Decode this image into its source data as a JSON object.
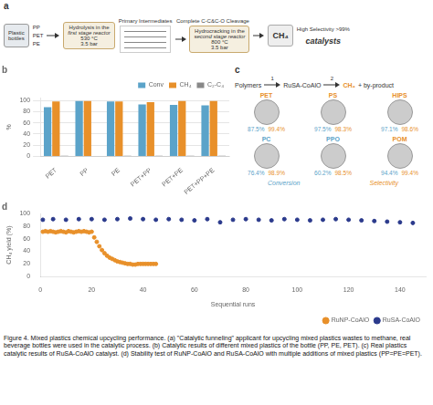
{
  "chart_data": [
    {
      "type": "diagram",
      "title": "a",
      "annotations": [
        "Plastic\nbottles",
        "PP",
        "PET",
        "PE",
        "Hydrolysis in the",
        "first stage reactor",
        "530 °C",
        "3.5 bar",
        "Primary Intermediates",
        "Complete C-C&C-O Cleavage",
        "Hydrocracking in the",
        "second stage reactor",
        "800 °C",
        "3.5 bar",
        "CH₄",
        "High Selectivity >99%",
        "catalysts"
      ]
    },
    {
      "type": "bar",
      "title": "b",
      "categories": [
        "PET",
        "PP",
        "PE",
        "PET+PP",
        "PET+PE",
        "PET+PP+PE"
      ],
      "series": [
        {
          "name": "Conv",
          "color": "#5ba3c9",
          "values": [
            88,
            99,
            98,
            93,
            92,
            91
          ]
        },
        {
          "name": "CH₄",
          "color": "#e8902a",
          "values": [
            98,
            99,
            98,
            97,
            99,
            99
          ]
        },
        {
          "name": "C₂-C₄",
          "color": "#888888",
          "values": [
            1.5,
            1.0,
            1.2,
            1.5,
            1.2,
            1.5
          ]
        }
      ],
      "y_label": "%",
      "ylim": [
        0,
        105
      ],
      "yticks": [
        0,
        20,
        40,
        60,
        80,
        100
      ],
      "grid": "y",
      "legend": "upper right"
    },
    {
      "type": "table",
      "title": "c",
      "annotations": [
        "Polymers",
        "1",
        "RuSA-CoAlO",
        "2",
        "CH₄",
        "+ by-product"
      ],
      "categories": [
        "PET",
        "PS",
        "HIPS",
        "PC",
        "PPO",
        "POM"
      ],
      "colors": [
        "#e8902a",
        "#e8902a",
        "#e8902a",
        "#5ba3c9",
        "#5ba3c9",
        "#e8902a"
      ],
      "series": [
        {
          "name": "Conversion",
          "color": "#5ba3c9",
          "values": [
            87.5,
            97.5,
            97.1,
            76.4,
            60.2,
            94.4
          ],
          "value_labels": [
            "87.5%",
            "97.5%",
            "97.1%",
            "76.4%",
            "60.2%",
            "94.4%"
          ]
        },
        {
          "name": "Selectivity",
          "color": "#e8902a",
          "values": [
            99.4,
            98.3,
            98.6,
            98.9,
            98.5,
            99.4
          ],
          "value_labels": [
            "99.4%",
            "98.3%",
            "98.6%",
            "98.9%",
            "98.5%",
            "99.4%"
          ]
        }
      ]
    },
    {
      "type": "scatter",
      "title": "d",
      "series": [
        {
          "name": "RuNP-CoAlO",
          "color": "#e8902a",
          "marker": "circle",
          "x": [
            1,
            2,
            3,
            4,
            5,
            6,
            7,
            8,
            9,
            10,
            11,
            12,
            13,
            14,
            15,
            16,
            17,
            18,
            19,
            20,
            21,
            22,
            23,
            24,
            25,
            26,
            27,
            28,
            29,
            30,
            31,
            32,
            33,
            34,
            35,
            36,
            37,
            38,
            39,
            40,
            41,
            42,
            43,
            44,
            45
          ],
          "values": [
            71,
            72,
            71,
            72,
            71,
            70,
            71,
            72,
            71,
            70,
            72,
            71,
            70,
            71,
            72,
            71,
            72,
            71,
            70,
            71,
            62,
            55,
            48,
            42,
            37,
            33,
            30,
            28,
            26,
            24,
            23,
            22,
            21,
            20,
            20,
            19,
            19,
            20,
            20,
            20,
            20,
            20,
            20,
            20,
            20
          ]
        },
        {
          "name": "RuSA-CoAlO",
          "color": "#2b3a8c",
          "marker": "circle",
          "x": [
            1,
            5,
            10,
            15,
            20,
            25,
            30,
            35,
            40,
            45,
            50,
            55,
            60,
            65,
            70,
            75,
            80,
            85,
            90,
            95,
            100,
            105,
            110,
            115,
            120,
            125,
            130,
            135,
            140,
            145
          ],
          "values": [
            90,
            91,
            90,
            91,
            91,
            90,
            91,
            92,
            91,
            90,
            91,
            90,
            89,
            91,
            86,
            90,
            91,
            90,
            89,
            91,
            90,
            89,
            90,
            91,
            90,
            89,
            88,
            87,
            86,
            85
          ]
        }
      ],
      "x_label": "Sequential runs",
      "y_label": "CH₄ yield (%)",
      "xlim": [
        0,
        150
      ],
      "xticks": [
        0,
        20,
        40,
        60,
        80,
        100,
        120,
        140
      ],
      "ylim": [
        0,
        100
      ],
      "yticks": [
        0,
        20,
        40,
        60,
        80,
        100
      ],
      "grid": false,
      "legend": "lower right",
      "annotations": [
        "Figure 4. Mixed plastics chemical upcycling performance. (a) \"Catalytic funneling\" applicant for upcycling mixed plastics wastes to methane, real beverage bottles were used in the catalytic process. (b) Catalytic results of different mixed plastics of the bottle (PP, PE, PET). (c) Real plastics catalytic results of RuSA-CoAlO catalyst. (d) Stability test of RuNP-CoAlO and RuSA-CoAlO with multiple additions of mixed plastics (PP=PE=PET)."
      ]
    }
  ]
}
